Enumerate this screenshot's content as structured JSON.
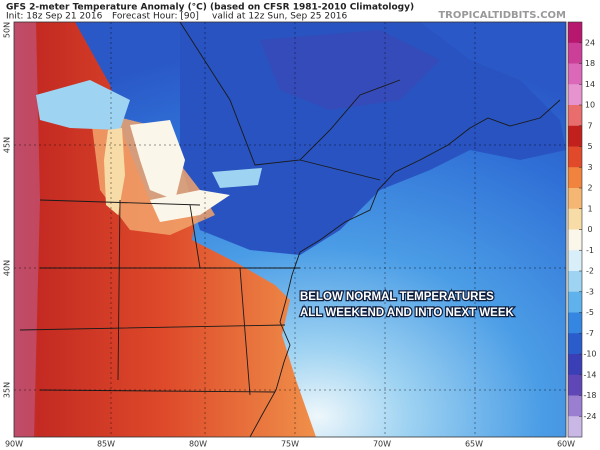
{
  "header": {
    "title": "GFS 2-meter Temperature Anomaly (°C) (based on CFSR 1981-2010 Climatology)",
    "init": "Init: 18z Sep 21 2016",
    "forecast_hour": "Forecast Hour: [90]",
    "valid": "valid at 12z Sun, Sep 25 2016",
    "watermark": "TROPICALTIDBITS.COM"
  },
  "map": {
    "annotation": [
      "BELOW NORMAL TEMPERATURES",
      "ALL WEEKEND AND INTO NEXT WEEK"
    ],
    "lat_labels": [
      "50N",
      "45N",
      "40N",
      "35N"
    ],
    "lon_labels": [
      "90W",
      "85W",
      "80W",
      "75W",
      "70W",
      "65W",
      "60W"
    ]
  },
  "colorbar": {
    "ticks": [
      24,
      18,
      14,
      10,
      7,
      5,
      3,
      2,
      1,
      0,
      -1,
      -2,
      -3,
      -5,
      -7,
      -10,
      -14,
      -18,
      -24
    ],
    "colors": [
      "#b8176f",
      "#cc3f98",
      "#db68b8",
      "#e793cf",
      "#ea6d6d",
      "#c2201d",
      "#e0492a",
      "#f0843e",
      "#f6b673",
      "#f8dca8",
      "#fbf6ea",
      "#d8eef8",
      "#9fd3f2",
      "#5fb2ec",
      "#3586e0",
      "#2a5ccc",
      "#3a3fb6",
      "#6047b8",
      "#9a7ed0",
      "#c9b8e6"
    ]
  }
}
